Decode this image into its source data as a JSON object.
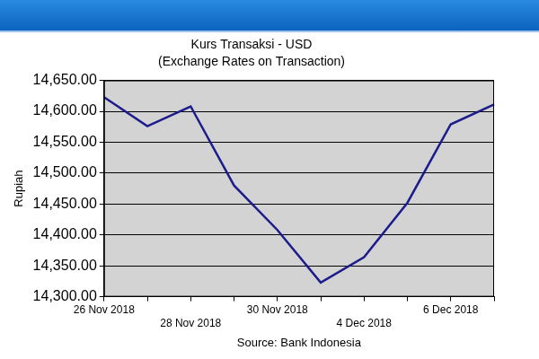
{
  "chart_data": {
    "type": "line",
    "title": "Kurs Transaksi - USD",
    "subtitle": "(Exchange Rates on Transaction)",
    "y_label": "Rupiah",
    "source": "Source: Bank Indonesia",
    "categories": [
      "26 Nov 2018",
      null,
      "28 Nov 2018",
      null,
      "30 Nov 2018",
      null,
      "4 Dec 2018",
      null,
      "6 Dec 2018",
      null
    ],
    "values": [
      14623,
      14576,
      14608,
      14480,
      14408,
      14323,
      14364,
      14452,
      14579,
      14611
    ],
    "color": "#1c1c8c",
    "marker": "none",
    "ylim": [
      14300,
      14650
    ],
    "yticks": [
      {
        "value": 14300,
        "label": "14,300.00"
      },
      {
        "value": 14350,
        "label": "14,350.00"
      },
      {
        "value": 14400,
        "label": "14,400.00"
      },
      {
        "value": 14450,
        "label": "14,450.00"
      },
      {
        "value": 14500,
        "label": "14,500.00"
      },
      {
        "value": 14550,
        "label": "14,550.00"
      },
      {
        "value": 14600,
        "label": "14,600.00"
      },
      {
        "value": 14650,
        "label": "14,650.00"
      }
    ],
    "grid": true,
    "legend": false
  }
}
